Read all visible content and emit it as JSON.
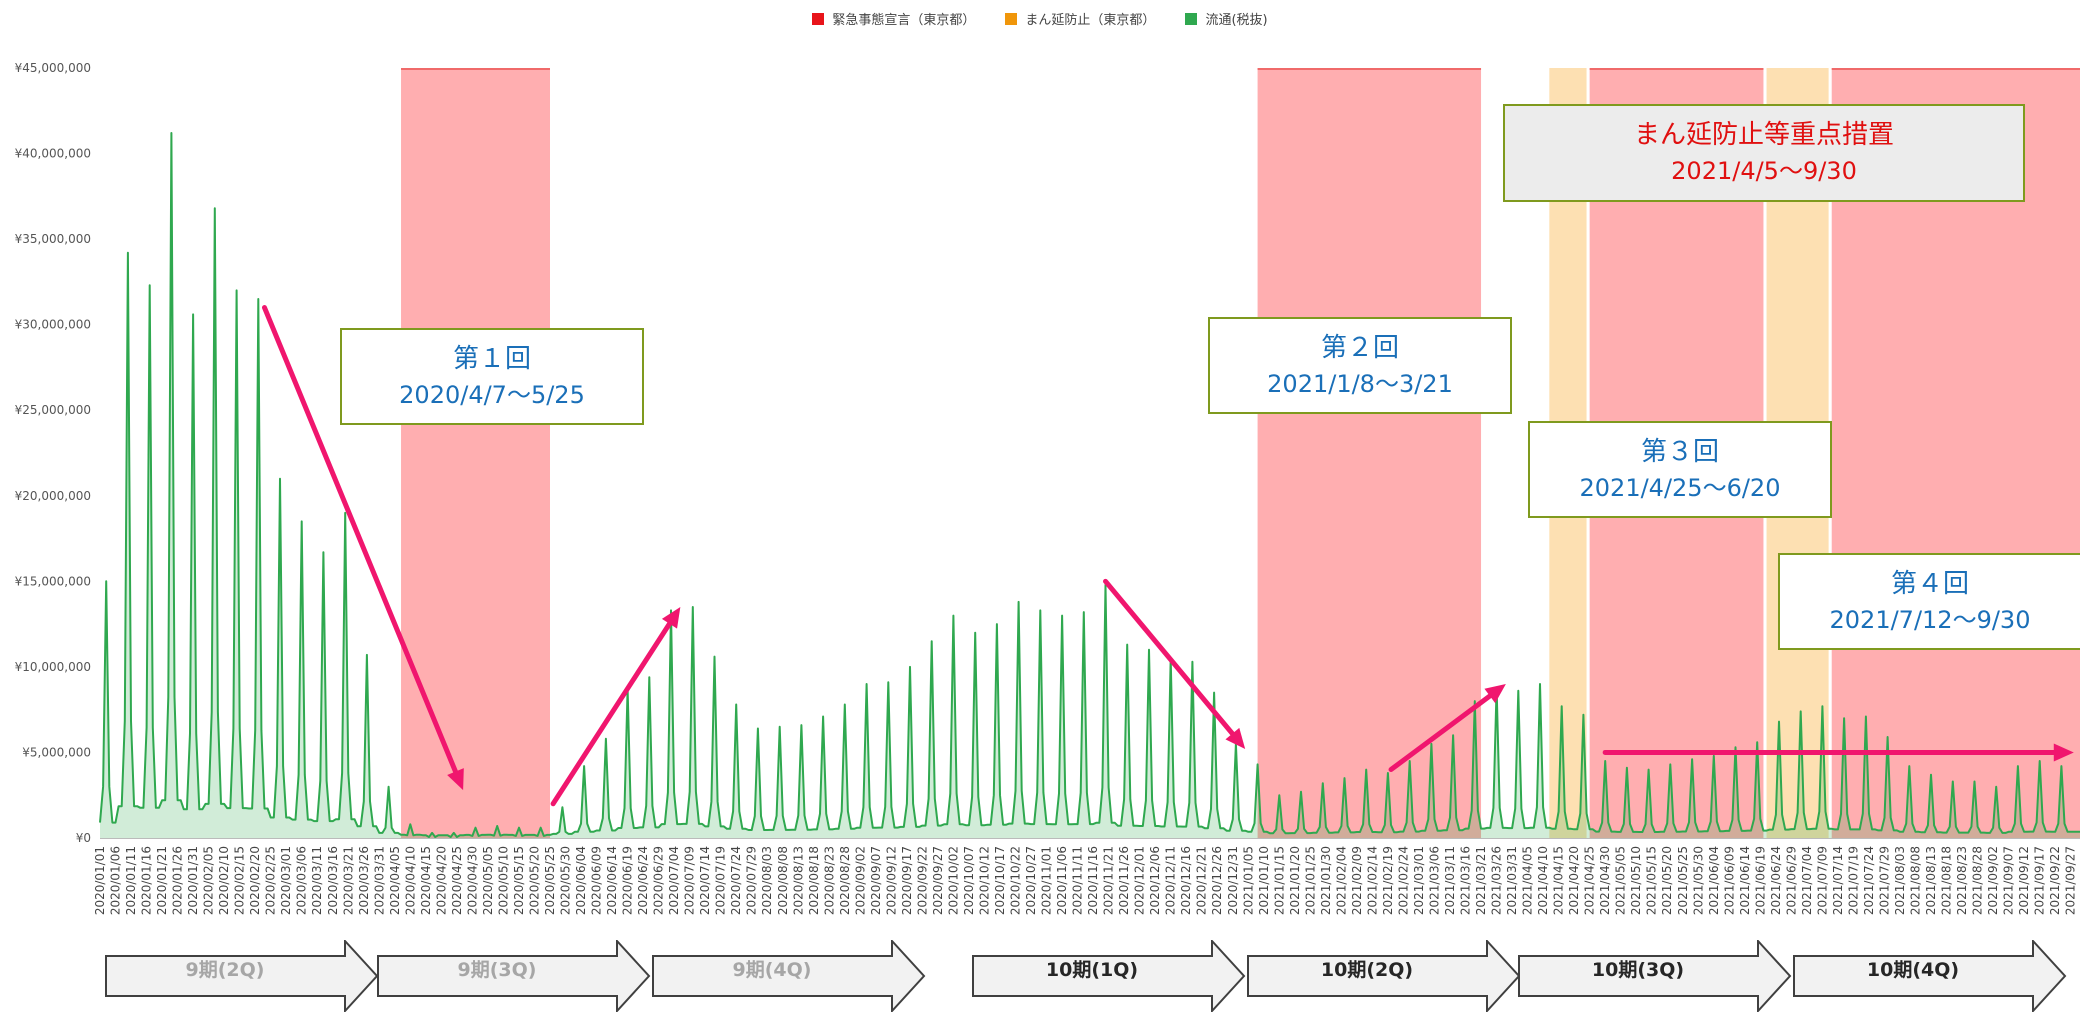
{
  "legend": [
    {
      "label": "緊急事態宣言（東京都）",
      "color": "#e8141a"
    },
    {
      "label": "まん延防止（東京都）",
      "color": "#f0960a"
    },
    {
      "label": "流通(税抜)",
      "color": "#2fa84f"
    }
  ],
  "annotations": {
    "box1": {
      "line1": "第１回",
      "line2": "2020/4/7～5/25"
    },
    "box2": {
      "line1": "第２回",
      "line2": "2021/1/8～3/21"
    },
    "box3": {
      "line1": "第３回",
      "line2": "2021/4/25～6/20"
    },
    "box4": {
      "line1": "第４回",
      "line2": "2021/7/12～9/30"
    },
    "box5": {
      "line1": "まん延防止等重点措置",
      "line2": "2021/4/5～9/30"
    }
  },
  "periods": [
    "9期(2Q)",
    "9期(3Q)",
    "9期(4Q)",
    "10期(1Q)",
    "10期(2Q)",
    "10期(3Q)",
    "10期(4Q)"
  ],
  "chart_data": {
    "type": "area",
    "title": "",
    "xlabel": "",
    "ylabel": "",
    "x_start": "2020/01/01",
    "x_end": "2021/09/30",
    "x_tick_interval_days": 5,
    "ylim": [
      0,
      45000000
    ],
    "y_ticks": [
      "¥0",
      "¥5,000,000",
      "¥10,000,000",
      "¥15,000,000",
      "¥20,000,000",
      "¥25,000,000",
      "¥30,000,000",
      "¥35,000,000",
      "¥40,000,000",
      "¥45,000,000"
    ],
    "series": [
      {
        "name": "流通(税抜)",
        "color": "#2fa84f",
        "weekly_peaks": [
          {
            "date": "2020/01/03",
            "value": 15000000
          },
          {
            "date": "2020/01/10",
            "value": 34200000
          },
          {
            "date": "2020/01/17",
            "value": 32300000
          },
          {
            "date": "2020/01/24",
            "value": 41200000
          },
          {
            "date": "2020/01/31",
            "value": 30600000
          },
          {
            "date": "2020/02/07",
            "value": 36800000
          },
          {
            "date": "2020/02/14",
            "value": 32000000
          },
          {
            "date": "2020/02/21",
            "value": 31500000
          },
          {
            "date": "2020/02/28",
            "value": 21000000
          },
          {
            "date": "2020/03/06",
            "value": 18500000
          },
          {
            "date": "2020/03/13",
            "value": 16700000
          },
          {
            "date": "2020/03/20",
            "value": 19000000
          },
          {
            "date": "2020/03/27",
            "value": 10700000
          },
          {
            "date": "2020/04/03",
            "value": 3000000
          },
          {
            "date": "2020/04/10",
            "value": 800000
          },
          {
            "date": "2020/04/17",
            "value": 300000
          },
          {
            "date": "2020/04/24",
            "value": 300000
          },
          {
            "date": "2020/05/01",
            "value": 600000
          },
          {
            "date": "2020/05/08",
            "value": 700000
          },
          {
            "date": "2020/05/15",
            "value": 600000
          },
          {
            "date": "2020/05/22",
            "value": 600000
          },
          {
            "date": "2020/05/29",
            "value": 1800000
          },
          {
            "date": "2020/06/05",
            "value": 4200000
          },
          {
            "date": "2020/06/12",
            "value": 5800000
          },
          {
            "date": "2020/06/19",
            "value": 8700000
          },
          {
            "date": "2020/06/26",
            "value": 9400000
          },
          {
            "date": "2020/07/03",
            "value": 13300000
          },
          {
            "date": "2020/07/10",
            "value": 13500000
          },
          {
            "date": "2020/07/17",
            "value": 10600000
          },
          {
            "date": "2020/07/24",
            "value": 7800000
          },
          {
            "date": "2020/07/31",
            "value": 6400000
          },
          {
            "date": "2020/08/07",
            "value": 6500000
          },
          {
            "date": "2020/08/14",
            "value": 6600000
          },
          {
            "date": "2020/08/21",
            "value": 7100000
          },
          {
            "date": "2020/08/28",
            "value": 7800000
          },
          {
            "date": "2020/09/04",
            "value": 9000000
          },
          {
            "date": "2020/09/11",
            "value": 9100000
          },
          {
            "date": "2020/09/18",
            "value": 10000000
          },
          {
            "date": "2020/09/25",
            "value": 11500000
          },
          {
            "date": "2020/10/02",
            "value": 13000000
          },
          {
            "date": "2020/10/09",
            "value": 12000000
          },
          {
            "date": "2020/10/16",
            "value": 12500000
          },
          {
            "date": "2020/10/23",
            "value": 13800000
          },
          {
            "date": "2020/10/30",
            "value": 13300000
          },
          {
            "date": "2020/11/06",
            "value": 13000000
          },
          {
            "date": "2020/11/13",
            "value": 13200000
          },
          {
            "date": "2020/11/20",
            "value": 14800000
          },
          {
            "date": "2020/11/27",
            "value": 11300000
          },
          {
            "date": "2020/12/04",
            "value": 11000000
          },
          {
            "date": "2020/12/11",
            "value": 10500000
          },
          {
            "date": "2020/12/18",
            "value": 10300000
          },
          {
            "date": "2020/12/25",
            "value": 8500000
          },
          {
            "date": "2021/01/01",
            "value": 5500000
          },
          {
            "date": "2021/01/08",
            "value": 4300000
          },
          {
            "date": "2021/01/15",
            "value": 2500000
          },
          {
            "date": "2021/01/22",
            "value": 2700000
          },
          {
            "date": "2021/01/29",
            "value": 3200000
          },
          {
            "date": "2021/02/05",
            "value": 3500000
          },
          {
            "date": "2021/02/12",
            "value": 4000000
          },
          {
            "date": "2021/02/19",
            "value": 3800000
          },
          {
            "date": "2021/02/26",
            "value": 4500000
          },
          {
            "date": "2021/03/05",
            "value": 5500000
          },
          {
            "date": "2021/03/12",
            "value": 6000000
          },
          {
            "date": "2021/03/19",
            "value": 8000000
          },
          {
            "date": "2021/03/26",
            "value": 8800000
          },
          {
            "date": "2021/04/02",
            "value": 8600000
          },
          {
            "date": "2021/04/09",
            "value": 9000000
          },
          {
            "date": "2021/04/16",
            "value": 7700000
          },
          {
            "date": "2021/04/23",
            "value": 7200000
          },
          {
            "date": "2021/04/30",
            "value": 4500000
          },
          {
            "date": "2021/05/07",
            "value": 4100000
          },
          {
            "date": "2021/05/14",
            "value": 4000000
          },
          {
            "date": "2021/05/21",
            "value": 4300000
          },
          {
            "date": "2021/05/28",
            "value": 4600000
          },
          {
            "date": "2021/06/04",
            "value": 4800000
          },
          {
            "date": "2021/06/11",
            "value": 5300000
          },
          {
            "date": "2021/06/18",
            "value": 5600000
          },
          {
            "date": "2021/06/25",
            "value": 6800000
          },
          {
            "date": "2021/07/02",
            "value": 7400000
          },
          {
            "date": "2021/07/09",
            "value": 7700000
          },
          {
            "date": "2021/07/16",
            "value": 7000000
          },
          {
            "date": "2021/07/23",
            "value": 7100000
          },
          {
            "date": "2021/07/30",
            "value": 5900000
          },
          {
            "date": "2021/08/06",
            "value": 4200000
          },
          {
            "date": "2021/08/13",
            "value": 3700000
          },
          {
            "date": "2021/08/20",
            "value": 3300000
          },
          {
            "date": "2021/08/27",
            "value": 3300000
          },
          {
            "date": "2021/09/03",
            "value": 3000000
          },
          {
            "date": "2021/09/10",
            "value": 4200000
          },
          {
            "date": "2021/09/17",
            "value": 4500000
          },
          {
            "date": "2021/09/24",
            "value": 4200000
          }
        ]
      }
    ],
    "shaded_periods": [
      {
        "label": "緊急事態宣言（東京都）",
        "start": "2020/04/07",
        "end": "2020/05/25",
        "color": "#e8141a"
      },
      {
        "label": "緊急事態宣言（東京都）",
        "start": "2021/01/08",
        "end": "2021/03/21",
        "color": "#e8141a"
      },
      {
        "label": "まん延防止（東京都）",
        "start": "2021/04/12",
        "end": "2021/04/24",
        "color": "#f0960a"
      },
      {
        "label": "緊急事態宣言（東京都）",
        "start": "2021/04/25",
        "end": "2021/06/20",
        "color": "#e8141a"
      },
      {
        "label": "まん延防止（東京都）",
        "start": "2021/06/21",
        "end": "2021/07/11",
        "color": "#f0960a"
      },
      {
        "label": "緊急事態宣言（東京都）",
        "start": "2021/07/12",
        "end": "2021/09/30",
        "color": "#e8141a"
      }
    ],
    "trend_arrows": [
      {
        "from": {
          "date": "2020/02/23",
          "value": 31000000
        },
        "to": {
          "date": "2020/04/27",
          "value": 2800000
        }
      },
      {
        "from": {
          "date": "2020/05/26",
          "value": 2000000
        },
        "to": {
          "date": "2020/07/06",
          "value": 13500000
        }
      },
      {
        "from": {
          "date": "2020/11/20",
          "value": 15000000
        },
        "to": {
          "date": "2021/01/04",
          "value": 5200000
        }
      },
      {
        "from": {
          "date": "2021/02/20",
          "value": 4000000
        },
        "to": {
          "date": "2021/03/29",
          "value": 9000000
        }
      },
      {
        "from": {
          "date": "2021/04/30",
          "value": 5000000
        },
        "to": {
          "date": "2021/09/28",
          "value": 5000000
        }
      }
    ]
  }
}
